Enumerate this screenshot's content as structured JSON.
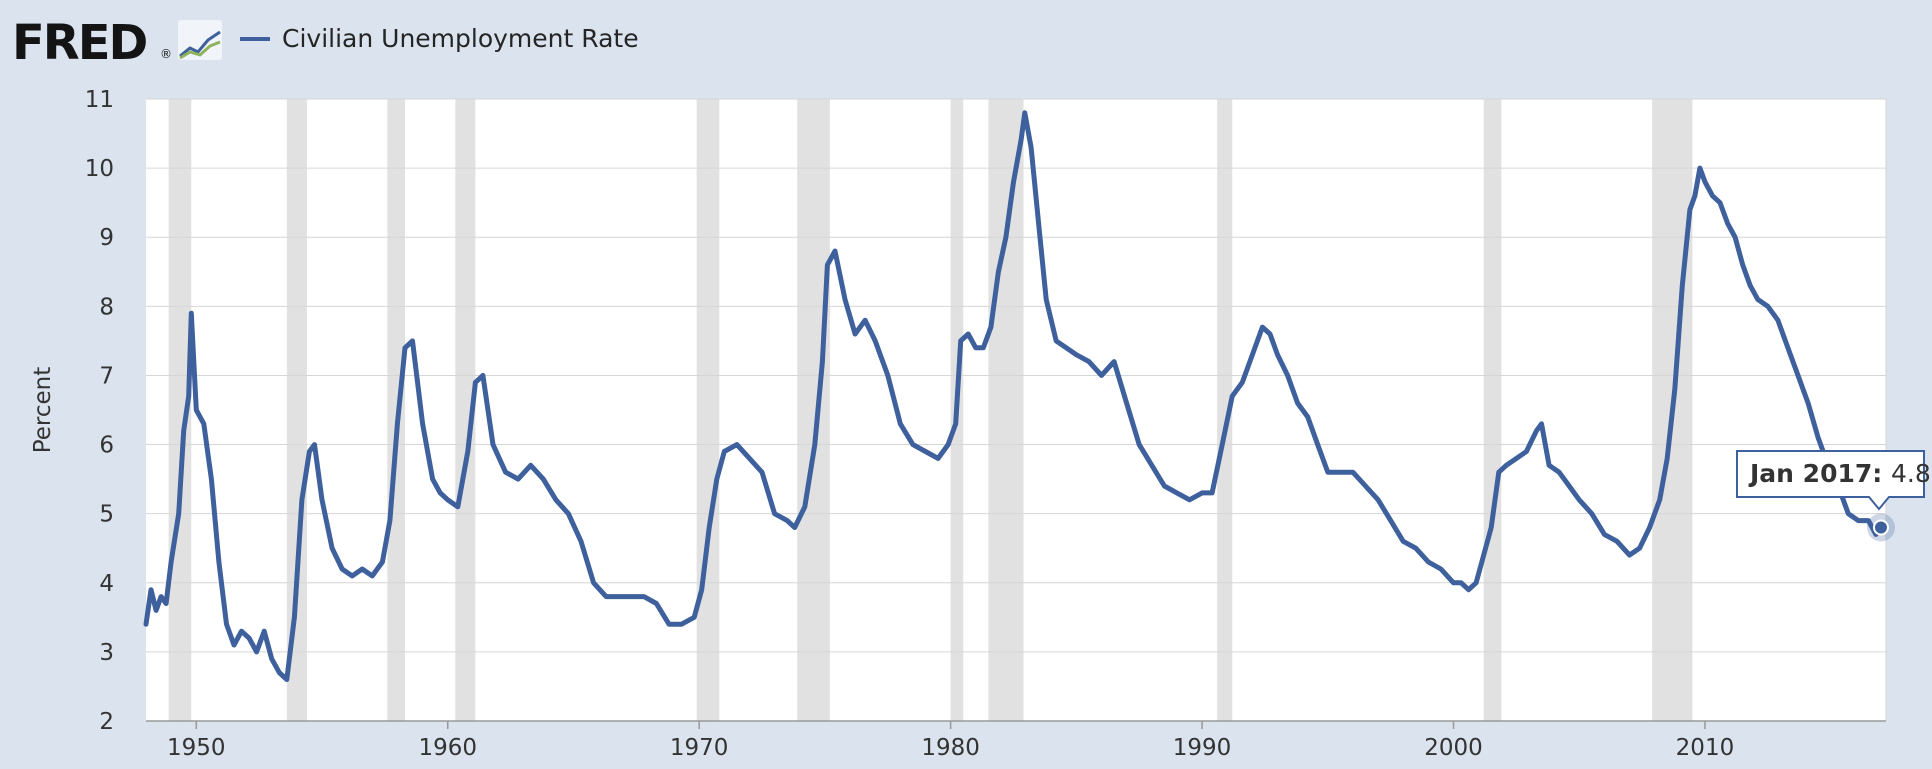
{
  "brand": {
    "name": "FRED",
    "mark": "®",
    "logo_icon": "line-chart-icon"
  },
  "legend": {
    "label": "Civilian Unemployment Rate",
    "position": "top-left"
  },
  "tooltip": {
    "date": "Jan 2017",
    "value": "4.8"
  },
  "colors": {
    "series": "#3e609c",
    "recession": "#e1e1e1",
    "grid": "#d6d6d6",
    "background": "#dbe3ee",
    "plot": "#ffffff"
  },
  "chart_data": {
    "type": "line",
    "title": "",
    "xlabel": "",
    "ylabel": "Percent",
    "xlim": [
      1948.0,
      2017.2
    ],
    "ylim": [
      2,
      11
    ],
    "yticks": [
      2,
      3,
      4,
      5,
      6,
      7,
      8,
      9,
      10,
      11
    ],
    "xticks": [
      1950,
      1960,
      1970,
      1980,
      1990,
      2000,
      2010
    ],
    "grid": true,
    "recessions": [
      [
        1948.9,
        1949.8
      ],
      [
        1953.6,
        1954.4
      ],
      [
        1957.6,
        1958.3
      ],
      [
        1960.3,
        1961.1
      ],
      [
        1969.9,
        1970.8
      ],
      [
        1973.9,
        1975.2
      ],
      [
        1980.0,
        1980.5
      ],
      [
        1981.5,
        1982.9
      ],
      [
        1990.6,
        1991.2
      ],
      [
        2001.2,
        2001.9
      ],
      [
        2007.9,
        2009.5
      ]
    ],
    "series": [
      {
        "name": "Civilian Unemployment Rate",
        "x": [
          1948.0,
          1948.2,
          1948.4,
          1948.6,
          1948.8,
          1949.0,
          1949.3,
          1949.5,
          1949.7,
          1949.8,
          1950.0,
          1950.3,
          1950.6,
          1950.9,
          1951.2,
          1951.5,
          1951.8,
          1952.1,
          1952.4,
          1952.7,
          1953.0,
          1953.3,
          1953.6,
          1953.9,
          1954.2,
          1954.5,
          1954.7,
          1955.0,
          1955.4,
          1955.8,
          1956.2,
          1956.6,
          1957.0,
          1957.4,
          1957.7,
          1958.0,
          1958.3,
          1958.6,
          1959.0,
          1959.4,
          1959.7,
          1960.0,
          1960.4,
          1960.8,
          1961.1,
          1961.4,
          1961.8,
          1962.3,
          1962.8,
          1963.3,
          1963.8,
          1964.3,
          1964.8,
          1965.3,
          1965.8,
          1966.3,
          1966.8,
          1967.3,
          1967.8,
          1968.3,
          1968.8,
          1969.3,
          1969.8,
          1970.1,
          1970.4,
          1970.7,
          1971.0,
          1971.5,
          1972.0,
          1972.5,
          1973.0,
          1973.5,
          1973.8,
          1974.2,
          1974.6,
          1974.9,
          1975.1,
          1975.4,
          1975.8,
          1976.2,
          1976.6,
          1977.0,
          1977.5,
          1978.0,
          1978.5,
          1979.0,
          1979.5,
          1979.9,
          1980.2,
          1980.4,
          1980.7,
          1981.0,
          1981.3,
          1981.6,
          1981.9,
          1982.2,
          1982.5,
          1982.8,
          1982.95,
          1983.2,
          1983.5,
          1983.8,
          1984.2,
          1984.6,
          1985.0,
          1985.5,
          1986.0,
          1986.5,
          1987.0,
          1987.5,
          1988.0,
          1988.5,
          1989.0,
          1989.5,
          1990.0,
          1990.4,
          1990.8,
          1991.2,
          1991.6,
          1992.0,
          1992.4,
          1992.7,
          1993.0,
          1993.4,
          1993.8,
          1994.2,
          1994.6,
          1995.0,
          1995.5,
          1996.0,
          1996.5,
          1997.0,
          1997.5,
          1998.0,
          1998.5,
          1999.0,
          1999.5,
          2000.0,
          2000.3,
          2000.6,
          2000.9,
          2001.2,
          2001.5,
          2001.8,
          2002.1,
          2002.5,
          2002.9,
          2003.3,
          2003.5,
          2003.8,
          2004.2,
          2004.6,
          2005.0,
          2005.5,
          2006.0,
          2006.5,
          2007.0,
          2007.4,
          2007.8,
          2008.2,
          2008.5,
          2008.8,
          2009.1,
          2009.4,
          2009.6,
          2009.8,
          2010.0,
          2010.3,
          2010.6,
          2010.9,
          2011.2,
          2011.5,
          2011.8,
          2012.1,
          2012.5,
          2012.9,
          2013.3,
          2013.7,
          2014.1,
          2014.5,
          2014.9,
          2015.3,
          2015.7,
          2016.1,
          2016.5,
          2016.8,
          2017.0
        ],
        "values": [
          3.4,
          3.9,
          3.6,
          3.8,
          3.7,
          4.3,
          5.0,
          6.2,
          6.7,
          7.9,
          6.5,
          6.3,
          5.5,
          4.3,
          3.4,
          3.1,
          3.3,
          3.2,
          3.0,
          3.3,
          2.9,
          2.7,
          2.6,
          3.5,
          5.2,
          5.9,
          6.0,
          5.2,
          4.5,
          4.2,
          4.1,
          4.2,
          4.1,
          4.3,
          4.9,
          6.3,
          7.4,
          7.5,
          6.3,
          5.5,
          5.3,
          5.2,
          5.1,
          5.9,
          6.9,
          7.0,
          6.0,
          5.6,
          5.5,
          5.7,
          5.5,
          5.2,
          5.0,
          4.6,
          4.0,
          3.8,
          3.8,
          3.8,
          3.8,
          3.7,
          3.4,
          3.4,
          3.5,
          3.9,
          4.8,
          5.5,
          5.9,
          6.0,
          5.8,
          5.6,
          5.0,
          4.9,
          4.8,
          5.1,
          6.0,
          7.2,
          8.6,
          8.8,
          8.1,
          7.6,
          7.8,
          7.5,
          7.0,
          6.3,
          6.0,
          5.9,
          5.8,
          6.0,
          6.3,
          7.5,
          7.6,
          7.4,
          7.4,
          7.7,
          8.5,
          9.0,
          9.8,
          10.4,
          10.8,
          10.3,
          9.2,
          8.1,
          7.5,
          7.4,
          7.3,
          7.2,
          7.0,
          7.2,
          6.6,
          6.0,
          5.7,
          5.4,
          5.3,
          5.2,
          5.3,
          5.3,
          6.0,
          6.7,
          6.9,
          7.3,
          7.7,
          7.6,
          7.3,
          7.0,
          6.6,
          6.4,
          6.0,
          5.6,
          5.6,
          5.6,
          5.4,
          5.2,
          4.9,
          4.6,
          4.5,
          4.3,
          4.2,
          4.0,
          4.0,
          3.9,
          4.0,
          4.4,
          4.8,
          5.6,
          5.7,
          5.8,
          5.9,
          6.2,
          6.3,
          5.7,
          5.6,
          5.4,
          5.2,
          5.0,
          4.7,
          4.6,
          4.4,
          4.5,
          4.8,
          5.2,
          5.8,
          6.8,
          8.3,
          9.4,
          9.6,
          10.0,
          9.8,
          9.6,
          9.5,
          9.2,
          9.0,
          8.6,
          8.3,
          8.1,
          8.0,
          7.8,
          7.4,
          7.0,
          6.6,
          6.1,
          5.7,
          5.4,
          5.0,
          4.9,
          4.9,
          4.7,
          4.8
        ]
      }
    ]
  }
}
